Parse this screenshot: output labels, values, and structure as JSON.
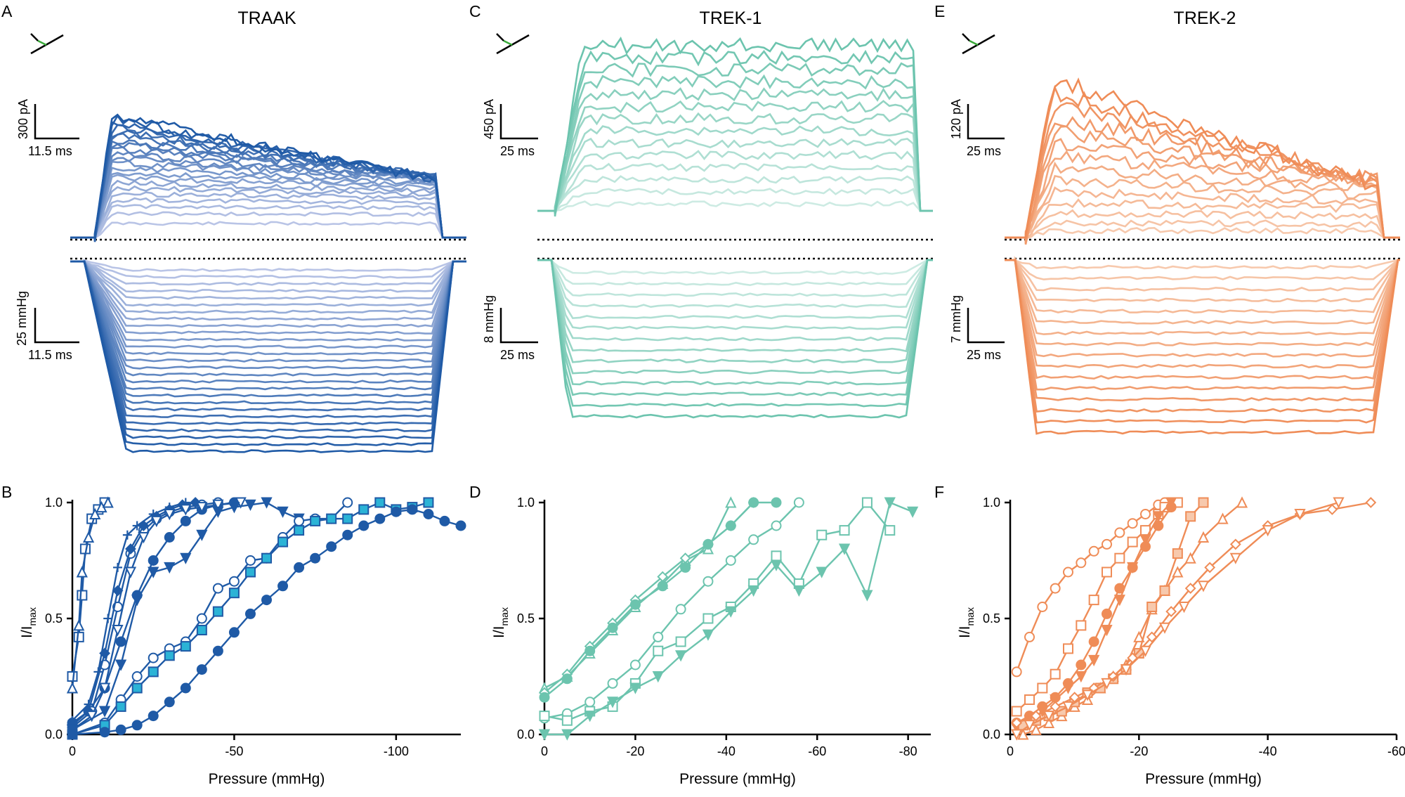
{
  "figure": {
    "panel_letters": {
      "A": "A",
      "B": "B",
      "C": "C",
      "D": "D",
      "E": "E",
      "F": "F"
    },
    "colors": {
      "TRAAK": {
        "dark": "#1f5aa6",
        "light": "#b9c4e6",
        "fill": "#2bb3d6"
      },
      "TREK-1": {
        "dark": "#6cc4ae",
        "light": "#cdebe3"
      },
      "TREK-2": {
        "dark": "#ef8c57",
        "light": "#f7c9ad"
      }
    }
  },
  "traces": [
    {
      "title": "TRAAK",
      "current_scale": {
        "value": "300 pA",
        "time": "11.5 ms"
      },
      "pressure_scale": {
        "value": "25 mmHg",
        "time": "11.5 ms"
      },
      "n_current_sweeps": 22,
      "n_pressure_sweeps": 27
    },
    {
      "title": "TREK-1",
      "current_scale": {
        "value": "450 pA",
        "time": "25 ms"
      },
      "pressure_scale": {
        "value": "8 mmHg",
        "time": "25 ms"
      },
      "n_current_sweeps": 14,
      "n_pressure_sweeps": 14
    },
    {
      "title": "TREK-2",
      "current_scale": {
        "value": "120 pA",
        "time": "25 ms"
      },
      "pressure_scale": {
        "value": "7 mmHg",
        "time": "25 ms"
      },
      "n_current_sweeps": 14,
      "n_pressure_sweeps": 16
    }
  ],
  "chart_data": [
    {
      "type": "scatter",
      "panel": "B",
      "xlabel": "Pressure (mmHg)",
      "ylabel": "I/I",
      "ylabel_sub": "max",
      "xlim": [
        0,
        -120
      ],
      "xticks": [
        0,
        -50,
        -100
      ],
      "ylim": [
        0,
        1
      ],
      "yticks": [
        "0.0",
        "0.5",
        "1.0"
      ],
      "series": [
        {
          "marker": "square-open",
          "x": [
            0,
            -2,
            -3,
            -4,
            -6,
            -8,
            -10
          ],
          "y": [
            0.25,
            0.42,
            0.6,
            0.8,
            0.93,
            0.97,
            1.0
          ]
        },
        {
          "marker": "triangle-open",
          "x": [
            0,
            -2,
            -3,
            -5,
            -7,
            -9,
            -11
          ],
          "y": [
            0.2,
            0.47,
            0.7,
            0.85,
            0.95,
            0.98,
            1.0
          ]
        },
        {
          "marker": "circle-filled",
          "x": [
            0,
            -5,
            -10,
            -15,
            -20,
            -25,
            -30,
            -35,
            -40,
            -45,
            -50
          ],
          "y": [
            0.05,
            0.1,
            0.2,
            0.4,
            0.6,
            0.75,
            0.85,
            0.92,
            0.97,
            0.99,
            1.0
          ]
        },
        {
          "marker": "plus",
          "x": [
            0,
            -5,
            -8,
            -11,
            -14,
            -17,
            -20,
            -25,
            -30,
            -35
          ],
          "y": [
            0.06,
            0.13,
            0.27,
            0.5,
            0.72,
            0.86,
            0.9,
            0.95,
            0.98,
            1.0
          ]
        },
        {
          "marker": "circle-open",
          "x": [
            0,
            -6,
            -10,
            -14,
            -18,
            -22,
            -26,
            -30,
            -35,
            -40,
            -45
          ],
          "y": [
            0.03,
            0.1,
            0.3,
            0.55,
            0.78,
            0.88,
            0.93,
            0.96,
            0.98,
            0.99,
            1.0
          ]
        },
        {
          "marker": "diamond-filled",
          "x": [
            0,
            -5,
            -10,
            -14,
            -18,
            -22,
            -26,
            -30,
            -34,
            -38
          ],
          "y": [
            0.04,
            0.1,
            0.35,
            0.62,
            0.8,
            0.9,
            0.94,
            0.97,
            0.99,
            1.0
          ]
        },
        {
          "marker": "triangle-down-open",
          "x": [
            0,
            -6,
            -10,
            -14,
            -18,
            -22,
            -26,
            -30,
            -35,
            -40,
            -45,
            -52
          ],
          "y": [
            0.02,
            0.08,
            0.2,
            0.45,
            0.7,
            0.85,
            0.92,
            0.95,
            0.97,
            0.98,
            0.99,
            1.0
          ]
        },
        {
          "marker": "triangle-down-filled",
          "x": [
            0,
            -10,
            -15,
            -20,
            -25,
            -30,
            -35,
            -40,
            -45,
            -50,
            -55,
            -60,
            -65,
            -70
          ],
          "y": [
            0.02,
            0.1,
            0.3,
            0.58,
            0.7,
            0.72,
            0.76,
            0.86,
            0.96,
            0.98,
            0.99,
            1.0,
            0.96,
            0.93
          ]
        },
        {
          "marker": "circle-open",
          "x": [
            0,
            -10,
            -15,
            -20,
            -25,
            -30,
            -35,
            -40,
            -45,
            -50,
            -55,
            -60,
            -65,
            -70,
            -75,
            -80,
            -85
          ],
          "y": [
            0.0,
            0.05,
            0.15,
            0.25,
            0.33,
            0.37,
            0.4,
            0.5,
            0.63,
            0.66,
            0.75,
            0.76,
            0.85,
            0.92,
            0.93,
            0.93,
            1.0
          ]
        },
        {
          "marker": "square-filled",
          "x": [
            0,
            -10,
            -15,
            -20,
            -25,
            -30,
            -35,
            -40,
            -45,
            -50,
            -55,
            -60,
            -65,
            -70,
            -75,
            -80,
            -85,
            -90,
            -95,
            -100,
            -105,
            -110
          ],
          "y": [
            0.0,
            0.04,
            0.12,
            0.2,
            0.27,
            0.34,
            0.38,
            0.45,
            0.53,
            0.61,
            0.7,
            0.76,
            0.83,
            0.88,
            0.92,
            0.93,
            0.93,
            0.97,
            1.0,
            0.97,
            0.98,
            1.0
          ]
        },
        {
          "marker": "circle-filled",
          "x": [
            0,
            -10,
            -15,
            -20,
            -25,
            -30,
            -35,
            -40,
            -45,
            -50,
            -55,
            -60,
            -65,
            -70,
            -75,
            -80,
            -85,
            -90,
            -95,
            -100,
            -105,
            -110,
            -115,
            -120
          ],
          "y": [
            0.0,
            0.01,
            0.02,
            0.04,
            0.08,
            0.14,
            0.2,
            0.28,
            0.36,
            0.44,
            0.52,
            0.58,
            0.64,
            0.72,
            0.76,
            0.81,
            0.86,
            0.9,
            0.93,
            0.96,
            0.97,
            0.95,
            0.92,
            0.9
          ]
        }
      ]
    },
    {
      "type": "scatter",
      "panel": "D",
      "xlabel": "Pressure (mmHg)",
      "ylabel": "I/I",
      "ylabel_sub": "max",
      "xlim": [
        0,
        -85
      ],
      "xticks": [
        0,
        -20,
        -40,
        -60,
        -80
      ],
      "ylim": [
        0,
        1
      ],
      "yticks": [
        "0.0",
        "0.5",
        "1.0"
      ],
      "series": [
        {
          "marker": "triangle-open",
          "x": [
            0,
            -5,
            -10,
            -15,
            -20,
            -26,
            -31,
            -36,
            -41
          ],
          "y": [
            0.2,
            0.25,
            0.35,
            0.45,
            0.55,
            0.65,
            0.75,
            0.8,
            1.0
          ]
        },
        {
          "marker": "diamond-open",
          "x": [
            0,
            -5,
            -10,
            -15,
            -20,
            -26,
            -31,
            -36,
            -41,
            -46
          ],
          "y": [
            0.18,
            0.26,
            0.38,
            0.48,
            0.58,
            0.68,
            0.76,
            0.82,
            0.9,
            1.0
          ]
        },
        {
          "marker": "circle-filled",
          "x": [
            0,
            -5,
            -10,
            -15,
            -20,
            -26,
            -31,
            -36,
            -41,
            -46,
            -51
          ],
          "y": [
            0.16,
            0.24,
            0.36,
            0.46,
            0.56,
            0.64,
            0.72,
            0.82,
            0.9,
            1.0,
            1.0
          ]
        },
        {
          "marker": "circle-open",
          "x": [
            0,
            -5,
            -10,
            -15,
            -20,
            -25,
            -30,
            -36,
            -41,
            -46,
            -51,
            -56
          ],
          "y": [
            0.07,
            0.09,
            0.14,
            0.22,
            0.3,
            0.42,
            0.54,
            0.66,
            0.75,
            0.84,
            0.9,
            1.0
          ]
        },
        {
          "marker": "square-open",
          "x": [
            0,
            -5,
            -10,
            -15,
            -20,
            -25,
            -30,
            -36,
            -41,
            -46,
            -51,
            -56,
            -61,
            -66,
            -71,
            -76
          ],
          "y": [
            0.08,
            0.06,
            0.1,
            0.12,
            0.22,
            0.36,
            0.4,
            0.5,
            0.55,
            0.65,
            0.77,
            0.65,
            0.86,
            0.88,
            1.0,
            0.88
          ]
        },
        {
          "marker": "triangle-down-filled",
          "x": [
            0,
            -5,
            -10,
            -15,
            -20,
            -25,
            -30,
            -36,
            -41,
            -46,
            -51,
            -56,
            -61,
            -66,
            -71,
            -76,
            -81
          ],
          "y": [
            0.0,
            0.0,
            0.08,
            0.14,
            0.2,
            0.25,
            0.34,
            0.43,
            0.53,
            0.62,
            0.73,
            0.62,
            0.7,
            0.8,
            0.6,
            1.0,
            0.96
          ]
        }
      ]
    },
    {
      "type": "scatter",
      "panel": "F",
      "xlabel": "Pressure (mmHg)",
      "ylabel": "I/I",
      "ylabel_sub": "max",
      "xlim": [
        0,
        -60
      ],
      "xticks": [
        0,
        -20,
        -40,
        -60
      ],
      "ylim": [
        0,
        1
      ],
      "yticks": [
        "0.0",
        "0.5",
        "1.0"
      ],
      "series": [
        {
          "marker": "circle-open",
          "x": [
            -1,
            -3,
            -5,
            -7,
            -9,
            -11,
            -13,
            -15,
            -17,
            -19,
            -21,
            -23,
            -24
          ],
          "y": [
            0.27,
            0.42,
            0.55,
            0.63,
            0.7,
            0.74,
            0.79,
            0.82,
            0.87,
            0.91,
            0.95,
            0.99,
            1.0
          ]
        },
        {
          "marker": "square-open",
          "x": [
            -1,
            -3,
            -5,
            -7,
            -9,
            -11,
            -13,
            -15,
            -17,
            -19,
            -21,
            -23,
            -24,
            -26
          ],
          "y": [
            0.1,
            0.15,
            0.2,
            0.26,
            0.37,
            0.47,
            0.58,
            0.7,
            0.76,
            0.83,
            0.88,
            0.95,
            0.98,
            1.0
          ]
        },
        {
          "marker": "circle-filled",
          "x": [
            -1,
            -3,
            -5,
            -7,
            -9,
            -11,
            -13,
            -15,
            -17,
            -19,
            -21,
            -23,
            -25
          ],
          "y": [
            0.05,
            0.08,
            0.12,
            0.16,
            0.22,
            0.3,
            0.4,
            0.52,
            0.63,
            0.72,
            0.81,
            0.9,
            0.98
          ]
        },
        {
          "marker": "triangle-down-filled",
          "x": [
            -1,
            -3,
            -5,
            -7,
            -9,
            -11,
            -13,
            -15,
            -17,
            -19,
            -21,
            -23,
            -25
          ],
          "y": [
            0.03,
            0.06,
            0.1,
            0.15,
            0.2,
            0.25,
            0.32,
            0.45,
            0.58,
            0.72,
            0.84,
            0.94,
            1.0
          ]
        },
        {
          "marker": "triangle-open",
          "x": [
            -2,
            -4,
            -6,
            -8,
            -10,
            -12,
            -14,
            -16,
            -18,
            -20,
            -22,
            -24,
            -26,
            -28,
            -30,
            -33,
            -36
          ],
          "y": [
            0.0,
            0.02,
            0.05,
            0.08,
            0.12,
            0.15,
            0.2,
            0.25,
            0.3,
            0.42,
            0.54,
            0.62,
            0.7,
            0.76,
            0.85,
            0.93,
            1.0
          ]
        },
        {
          "marker": "square-filled-light",
          "x": [
            -2,
            -4,
            -6,
            -8,
            -10,
            -12,
            -14,
            -16,
            -18,
            -20,
            -22,
            -24,
            -26,
            -28,
            -30
          ],
          "y": [
            0.04,
            0.06,
            0.08,
            0.1,
            0.14,
            0.18,
            0.2,
            0.24,
            0.28,
            0.35,
            0.55,
            0.62,
            0.78,
            0.94,
            1.0
          ]
        },
        {
          "marker": "diamond-open",
          "x": [
            -1,
            -4,
            -7,
            -10,
            -13,
            -16,
            -19,
            -22,
            -25,
            -28,
            -31,
            -35,
            -40,
            -45,
            -50,
            -56
          ],
          "y": [
            0.05,
            0.08,
            0.12,
            0.16,
            0.2,
            0.25,
            0.33,
            0.42,
            0.53,
            0.63,
            0.72,
            0.82,
            0.9,
            0.95,
            0.97,
            1.0
          ]
        },
        {
          "marker": "triangle-down-open",
          "x": [
            -1,
            -3,
            -6,
            -9,
            -12,
            -15,
            -18,
            -21,
            -24,
            -27,
            -30,
            -35,
            -40,
            -45,
            -51
          ],
          "y": [
            0.0,
            0.04,
            0.08,
            0.12,
            0.17,
            0.22,
            0.28,
            0.36,
            0.46,
            0.55,
            0.64,
            0.76,
            0.88,
            0.95,
            1.0
          ]
        }
      ]
    }
  ]
}
